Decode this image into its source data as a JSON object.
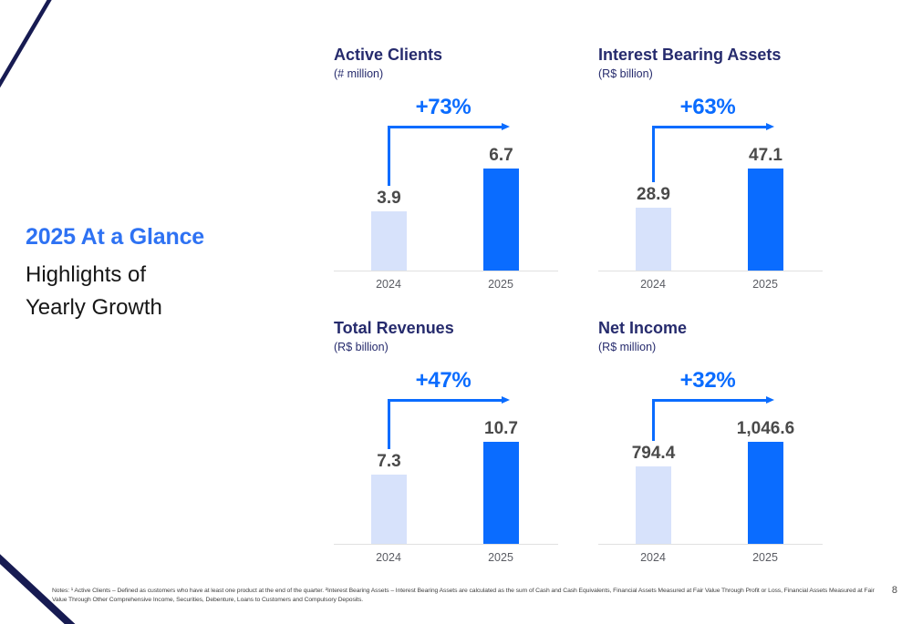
{
  "slide": {
    "title_accent": "2025 At a Glance",
    "subtitle_line1": "Highlights of",
    "subtitle_line2": "Yearly Growth",
    "page_number": "8",
    "notes_line1": "Notes: ¹ Active Clients – Defined as customers who have at least one product at the end of the quarter. ²Interest Bearing Assets – Interest Bearing Assets are calculated as the sum of Cash and Cash Equivalents, Financial Assets Measured at Fair Value Through Profit or Loss, Financial Assets Measured at Fair",
    "notes_line2": "Value Through Other Comprehensive Income, Securities, Debenture, Loans to Customers and Compulsory Deposits."
  },
  "colors": {
    "accent_blue": "#0a6cff",
    "light_blue": "#d7e2fb",
    "navy": "#262b6d",
    "headline_blue": "#2e72f3",
    "value_gray": "#4a4a4a",
    "decor_navy": "#171b52"
  },
  "chart_data": [
    {
      "type": "bar",
      "title": "Active Clients",
      "unit": "(# million)",
      "growth_label": "+73%",
      "categories": [
        "2024",
        "2025"
      ],
      "values": [
        3.9,
        6.7
      ],
      "value_labels": [
        "3.9",
        "6.7"
      ],
      "series_colors": [
        "#d7e2fb",
        "#0a6cff"
      ],
      "grid": false,
      "legend": "none"
    },
    {
      "type": "bar",
      "title": "Interest Bearing Assets",
      "unit": "(R$ billion)",
      "growth_label": "+63%",
      "categories": [
        "2024",
        "2025"
      ],
      "values": [
        28.9,
        47.1
      ],
      "value_labels": [
        "28.9",
        "47.1"
      ],
      "series_colors": [
        "#d7e2fb",
        "#0a6cff"
      ],
      "grid": false,
      "legend": "none"
    },
    {
      "type": "bar",
      "title": "Total Revenues",
      "unit": "(R$ billion)",
      "growth_label": "+47%",
      "categories": [
        "2024",
        "2025"
      ],
      "values": [
        7.3,
        10.7
      ],
      "value_labels": [
        "7.3",
        "10.7"
      ],
      "series_colors": [
        "#d7e2fb",
        "#0a6cff"
      ],
      "grid": false,
      "legend": "none"
    },
    {
      "type": "bar",
      "title": "Net Income",
      "unit": "(R$ million)",
      "growth_label": "+32%",
      "categories": [
        "2024",
        "2025"
      ],
      "values": [
        794.4,
        1046.6
      ],
      "value_labels": [
        "794.4",
        "1,046.6"
      ],
      "series_colors": [
        "#d7e2fb",
        "#0a6cff"
      ],
      "grid": false,
      "legend": "none"
    }
  ]
}
